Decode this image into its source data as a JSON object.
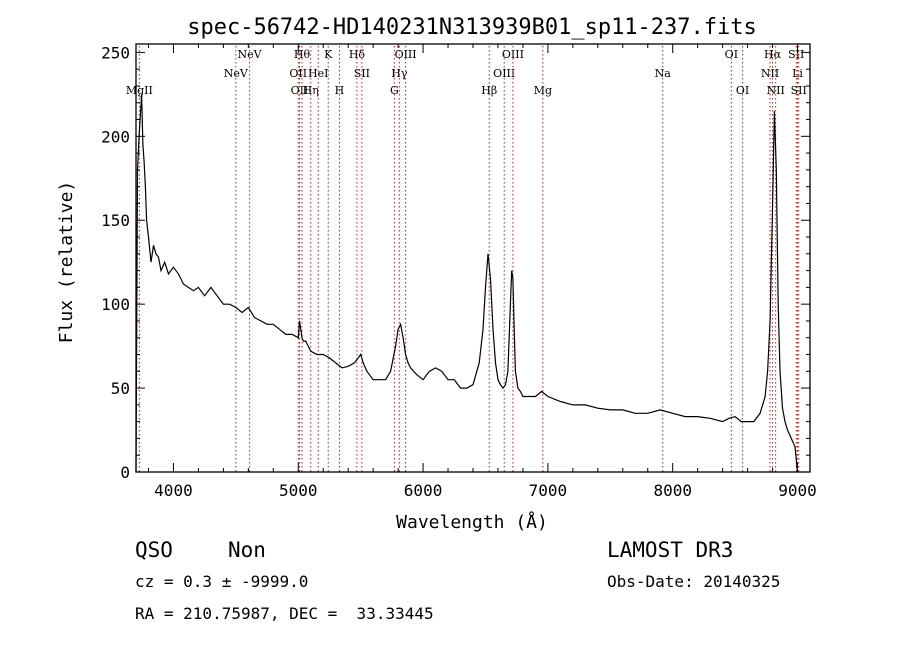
{
  "chart_data": {
    "type": "line",
    "title": "spec-56742-HD140231N313939B01_sp11-237.fits",
    "xlabel": "Wavelength (Å)",
    "ylabel": "Flux (relative)",
    "xlim": [
      3700,
      9100
    ],
    "ylim": [
      0,
      255
    ],
    "x_ticks": [
      4000,
      5000,
      6000,
      7000,
      8000,
      9000
    ],
    "y_ticks": [
      0,
      50,
      100,
      150,
      200,
      250
    ],
    "grid": false,
    "line_color": "#000000",
    "marker_color": "#a0281e",
    "series": [
      {
        "x": [
          3700,
          3712,
          3725,
          3737,
          3745,
          3755,
          3765,
          3775,
          3785,
          3800,
          3820,
          3840,
          3860,
          3880,
          3900,
          3930,
          3960,
          4000,
          4040,
          4080,
          4120,
          4160,
          4200,
          4250,
          4300,
          4350,
          4400,
          4450,
          4500,
          4550,
          4600,
          4650,
          4700,
          4750,
          4800,
          4850,
          4900,
          4950,
          5000,
          5010,
          5020,
          5030,
          5040,
          5060,
          5080,
          5100,
          5150,
          5200,
          5250,
          5300,
          5350,
          5400,
          5450,
          5480,
          5500,
          5520,
          5550,
          5600,
          5650,
          5700,
          5740,
          5780,
          5800,
          5820,
          5840,
          5860,
          5880,
          5900,
          5950,
          6000,
          6050,
          6100,
          6150,
          6200,
          6250,
          6300,
          6350,
          6400,
          6450,
          6480,
          6500,
          6520,
          6540,
          6560,
          6580,
          6600,
          6620,
          6640,
          6660,
          6680,
          6700,
          6710,
          6720,
          6730,
          6740,
          6760,
          6780,
          6800,
          6850,
          6900,
          6950,
          7000,
          7100,
          7200,
          7300,
          7400,
          7500,
          7600,
          7700,
          7800,
          7900,
          8000,
          8100,
          8200,
          8300,
          8400,
          8450,
          8500,
          8550,
          8600,
          8650,
          8700,
          8740,
          8760,
          8780,
          8800,
          8815,
          8830,
          8845,
          8860,
          8880,
          8900,
          8920,
          8950,
          8980,
          9000
        ],
        "y": [
          0,
          180,
          200,
          215,
          225,
          195,
          185,
          170,
          150,
          140,
          125,
          135,
          130,
          128,
          120,
          125,
          118,
          122,
          118,
          112,
          110,
          108,
          110,
          105,
          110,
          105,
          100,
          100,
          98,
          95,
          98,
          92,
          90,
          88,
          88,
          85,
          82,
          82,
          80,
          90,
          85,
          80,
          78,
          78,
          75,
          72,
          70,
          70,
          68,
          65,
          62,
          63,
          65,
          68,
          70,
          65,
          60,
          55,
          55,
          55,
          60,
          75,
          85,
          88,
          80,
          70,
          65,
          62,
          58,
          55,
          60,
          62,
          60,
          55,
          55,
          50,
          50,
          52,
          65,
          85,
          110,
          130,
          115,
          85,
          65,
          55,
          52,
          50,
          52,
          60,
          100,
          120,
          115,
          85,
          60,
          50,
          48,
          45,
          45,
          45,
          48,
          45,
          42,
          40,
          40,
          38,
          37,
          37,
          35,
          35,
          37,
          35,
          33,
          33,
          32,
          30,
          32,
          33,
          30,
          30,
          30,
          35,
          45,
          60,
          90,
          160,
          215,
          180,
          100,
          60,
          38,
          30,
          25,
          20,
          15,
          0
        ]
      }
    ],
    "lines": [
      {
        "w": 3727,
        "label": "MgII",
        "row": 3
      },
      {
        "w": 4500,
        "label": "NeV",
        "row": 2
      },
      {
        "w": 4610,
        "label": "NeV",
        "row": 1
      },
      {
        "w": 5000,
        "label": "OII",
        "row": 2
      },
      {
        "w": 5010,
        "label": "OII",
        "row": 3
      },
      {
        "w": 5030,
        "label": "Hθ",
        "row": 1
      },
      {
        "w": 5100,
        "label": "Hη",
        "row": 3
      },
      {
        "w": 5160,
        "label": "HeI",
        "row": 2
      },
      {
        "w": 5240,
        "label": "K",
        "row": 1
      },
      {
        "w": 5330,
        "label": "H",
        "row": 3
      },
      {
        "w": 5470,
        "label": "Hδ",
        "row": 1
      },
      {
        "w": 5510,
        "label": "SII",
        "row": 2
      },
      {
        "w": 5770,
        "label": "G",
        "row": 3
      },
      {
        "w": 5810,
        "label": "Hγ",
        "row": 2
      },
      {
        "w": 5860,
        "label": "OIII",
        "row": 1
      },
      {
        "w": 6530,
        "label": "Hβ",
        "row": 3
      },
      {
        "w": 6650,
        "label": "OIII",
        "row": 2
      },
      {
        "w": 6720,
        "label": "OIII",
        "row": 1
      },
      {
        "w": 6960,
        "label": "Mg",
        "row": 3
      },
      {
        "w": 7920,
        "label": "Na",
        "row": 2
      },
      {
        "w": 8470,
        "label": "OI",
        "row": 1
      },
      {
        "w": 8560,
        "label": "OI",
        "row": 3
      },
      {
        "w": 8800,
        "label": "Hα",
        "row": 1
      },
      {
        "w": 8780,
        "label": "NII",
        "row": 2
      },
      {
        "w": 8825,
        "label": "NII",
        "row": 3
      },
      {
        "w": 8990,
        "label": "SII",
        "row": 1
      },
      {
        "w": 9000,
        "label": "Li",
        "row": 2
      },
      {
        "w": 9010,
        "label": "SII",
        "row": 3
      }
    ]
  },
  "info": {
    "class": "QSO",
    "subclass": "Non",
    "cz": "cz = 0.3 ± -9999.0",
    "coords": "RA = 210.75987, DEC =  33.33445",
    "survey": "LAMOST DR3",
    "obs_date": "Obs-Date: 20140325"
  }
}
